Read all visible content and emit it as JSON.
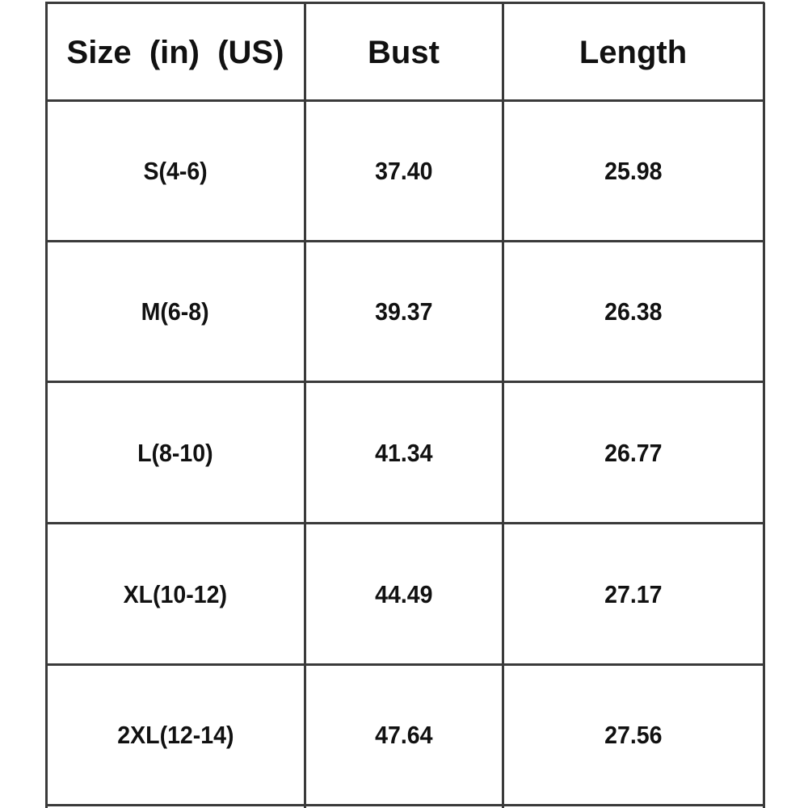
{
  "table": {
    "headers": [
      "Size  (in)  (US)",
      "Bust",
      "Length"
    ],
    "rows": [
      [
        "S(4-6)",
        "37.40",
        "25.98"
      ],
      [
        "M(6-8)",
        "39.37",
        "26.38"
      ],
      [
        "L(8-10)",
        "41.34",
        "26.77"
      ],
      [
        "XL(10-12)",
        "44.49",
        "27.17"
      ],
      [
        "2XL(12-14)",
        "47.64",
        "27.56"
      ]
    ]
  }
}
